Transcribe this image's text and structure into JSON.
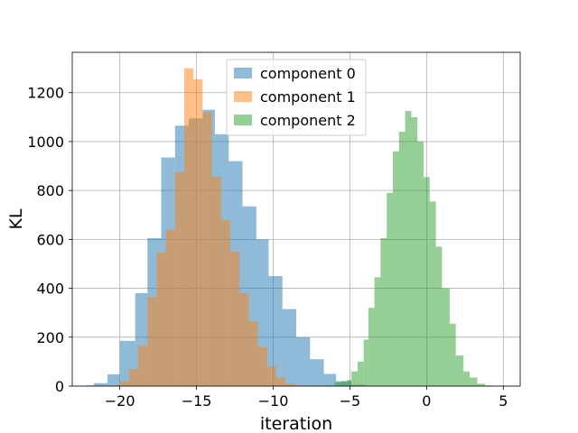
{
  "chart_data": {
    "type": "histogram",
    "xlabel": "iteration",
    "ylabel": "KL",
    "xlim": [
      -23.1,
      6.1
    ],
    "ylim": [
      0,
      1365
    ],
    "x_ticks": [
      -20,
      -15,
      -10,
      -5,
      0,
      5
    ],
    "x_tick_labels": [
      "−20",
      "−15",
      "−10",
      "−5",
      "0",
      "5"
    ],
    "y_ticks": [
      0,
      200,
      400,
      600,
      800,
      1000,
      1200
    ],
    "y_tick_labels": [
      "0",
      "200",
      "400",
      "600",
      "800",
      "1000",
      "1200"
    ],
    "grid": true,
    "legend_position": "upper center",
    "bar_alpha": 0.5,
    "series": [
      {
        "name": "component 0",
        "color": "#1f77b4",
        "bins": [
          {
            "x0": -22.2,
            "x1": -21.7,
            "y": 3
          },
          {
            "x0": -21.7,
            "x1": -20.8,
            "y": 12
          },
          {
            "x0": -20.8,
            "x1": -20.0,
            "y": 48
          },
          {
            "x0": -20.0,
            "x1": -19.0,
            "y": 185
          },
          {
            "x0": -19.0,
            "x1": -18.2,
            "y": 380
          },
          {
            "x0": -18.2,
            "x1": -17.3,
            "y": 605
          },
          {
            "x0": -17.3,
            "x1": -16.4,
            "y": 935
          },
          {
            "x0": -16.4,
            "x1": -15.5,
            "y": 1065
          },
          {
            "x0": -15.5,
            "x1": -14.6,
            "y": 1095
          },
          {
            "x0": -14.6,
            "x1": -13.8,
            "y": 1130
          },
          {
            "x0": -13.8,
            "x1": -12.9,
            "y": 1030
          },
          {
            "x0": -12.9,
            "x1": -12.0,
            "y": 920
          },
          {
            "x0": -12.0,
            "x1": -11.1,
            "y": 735
          },
          {
            "x0": -11.1,
            "x1": -10.3,
            "y": 600
          },
          {
            "x0": -10.3,
            "x1": -9.4,
            "y": 450
          },
          {
            "x0": -9.4,
            "x1": -8.5,
            "y": 315
          },
          {
            "x0": -8.5,
            "x1": -7.6,
            "y": 200
          },
          {
            "x0": -7.6,
            "x1": -6.7,
            "y": 110
          },
          {
            "x0": -6.7,
            "x1": -5.9,
            "y": 50
          },
          {
            "x0": -5.9,
            "x1": -4.9,
            "y": 20
          },
          {
            "x0": -4.9,
            "x1": -4.0,
            "y": 5
          }
        ]
      },
      {
        "name": "component 1",
        "color": "#ff7f0e",
        "bins": [
          {
            "x0": -21.0,
            "x1": -20.0,
            "y": 3
          },
          {
            "x0": -20.0,
            "x1": -19.4,
            "y": 20
          },
          {
            "x0": -19.4,
            "x1": -18.8,
            "y": 70
          },
          {
            "x0": -18.8,
            "x1": -18.2,
            "y": 165
          },
          {
            "x0": -18.2,
            "x1": -17.6,
            "y": 365
          },
          {
            "x0": -17.6,
            "x1": -17.0,
            "y": 545
          },
          {
            "x0": -17.0,
            "x1": -16.4,
            "y": 640
          },
          {
            "x0": -16.4,
            "x1": -15.8,
            "y": 875
          },
          {
            "x0": -15.8,
            "x1": -15.2,
            "y": 1300
          },
          {
            "x0": -15.2,
            "x1": -14.6,
            "y": 1255
          },
          {
            "x0": -14.6,
            "x1": -14.0,
            "y": 1120
          },
          {
            "x0": -14.0,
            "x1": -13.4,
            "y": 855
          },
          {
            "x0": -13.4,
            "x1": -12.8,
            "y": 680
          },
          {
            "x0": -12.8,
            "x1": -12.2,
            "y": 550
          },
          {
            "x0": -12.2,
            "x1": -11.6,
            "y": 380
          },
          {
            "x0": -11.6,
            "x1": -11.0,
            "y": 265
          },
          {
            "x0": -11.0,
            "x1": -10.4,
            "y": 160
          },
          {
            "x0": -10.4,
            "x1": -9.8,
            "y": 80
          },
          {
            "x0": -9.8,
            "x1": -9.2,
            "y": 35
          },
          {
            "x0": -9.2,
            "x1": -8.6,
            "y": 10
          },
          {
            "x0": -8.6,
            "x1": -8.0,
            "y": 3
          }
        ]
      },
      {
        "name": "component 2",
        "color": "#2ca02c",
        "bins": [
          {
            "x0": -6.6,
            "x1": -6.0,
            "y": 3
          },
          {
            "x0": -6.0,
            "x1": -5.6,
            "y": 15
          },
          {
            "x0": -5.6,
            "x1": -5.2,
            "y": 20
          },
          {
            "x0": -5.2,
            "x1": -4.9,
            "y": 25
          },
          {
            "x0": -4.9,
            "x1": -4.5,
            "y": 60
          },
          {
            "x0": -4.5,
            "x1": -4.1,
            "y": 100
          },
          {
            "x0": -4.1,
            "x1": -3.8,
            "y": 190
          },
          {
            "x0": -3.8,
            "x1": -3.4,
            "y": 320
          },
          {
            "x0": -3.4,
            "x1": -3.0,
            "y": 445
          },
          {
            "x0": -3.0,
            "x1": -2.6,
            "y": 605
          },
          {
            "x0": -2.6,
            "x1": -2.2,
            "y": 790
          },
          {
            "x0": -2.2,
            "x1": -1.8,
            "y": 960
          },
          {
            "x0": -1.8,
            "x1": -1.4,
            "y": 1040
          },
          {
            "x0": -1.4,
            "x1": -1.0,
            "y": 1125
          },
          {
            "x0": -1.0,
            "x1": -0.6,
            "y": 1100
          },
          {
            "x0": -0.6,
            "x1": -0.2,
            "y": 1000
          },
          {
            "x0": -0.2,
            "x1": 0.2,
            "y": 855
          },
          {
            "x0": 0.2,
            "x1": 0.6,
            "y": 755
          },
          {
            "x0": 0.6,
            "x1": 1.0,
            "y": 570
          },
          {
            "x0": 1.0,
            "x1": 1.5,
            "y": 400
          },
          {
            "x0": 1.5,
            "x1": 1.9,
            "y": 255
          },
          {
            "x0": 1.9,
            "x1": 2.4,
            "y": 125
          },
          {
            "x0": 2.4,
            "x1": 2.8,
            "y": 60
          },
          {
            "x0": 2.8,
            "x1": 3.3,
            "y": 35
          },
          {
            "x0": 3.3,
            "x1": 3.8,
            "y": 10
          },
          {
            "x0": 3.8,
            "x1": 4.3,
            "y": 3
          },
          {
            "x0": 4.3,
            "x1": 4.8,
            "y": 1
          }
        ]
      }
    ]
  }
}
